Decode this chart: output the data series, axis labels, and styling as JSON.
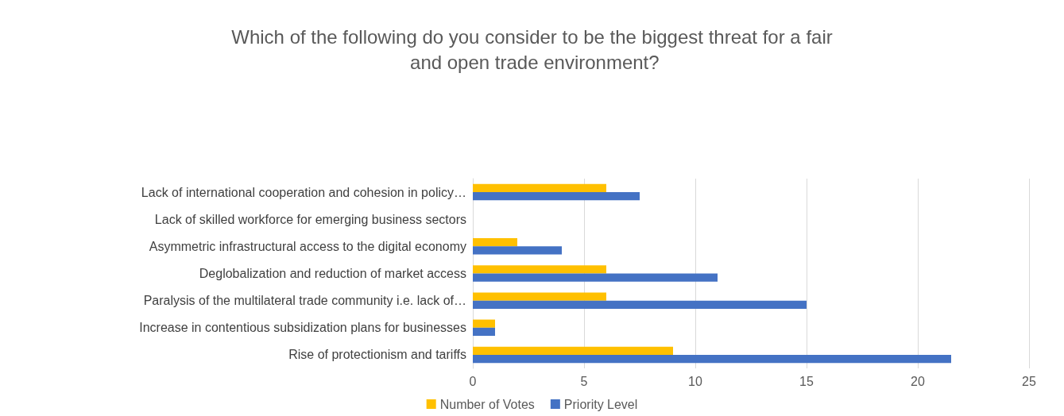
{
  "chart_data": {
    "type": "bar",
    "orientation": "horizontal",
    "title": "Which of the following do you consider to be the biggest threat for a fair and open trade environment?",
    "categories": [
      "Lack of international cooperation and cohesion in policy…",
      "Lack of skilled workforce for emerging business sectors",
      "Asymmetric infrastructural access to the digital economy",
      "Deglobalization and reduction of market access",
      "Paralysis of the multilateral trade community i.e. lack of…",
      "Increase in contentious subsidization plans for businesses",
      "Rise of protectionism and tariffs"
    ],
    "series": [
      {
        "name": "Number of Votes",
        "color": "#ffc000",
        "values": [
          6,
          0,
          2,
          6,
          6,
          1,
          9
        ]
      },
      {
        "name": "Priority Level",
        "color": "#4472c4",
        "values": [
          7.5,
          0,
          4,
          11,
          15,
          1,
          21.5
        ]
      }
    ],
    "xlim": [
      0,
      25
    ],
    "xticks": [
      0,
      5,
      10,
      15,
      20,
      25
    ],
    "grid": "x",
    "legend": "bottom"
  }
}
